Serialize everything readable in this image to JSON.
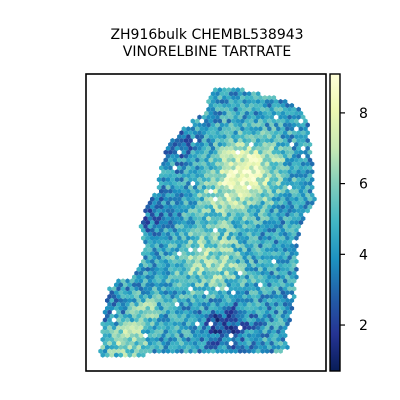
{
  "chart_data": {
    "type": "heatmap",
    "subtype": "hexbin spatial map",
    "title_lines": [
      "ZH916bulk CHEMBL538943",
      "VINORELBINE TARTRATE"
    ],
    "xlabel": "",
    "ylabel": "",
    "axis_ticks_visible": false,
    "grid": false,
    "colormap": "YlGnBu_r",
    "colorbar": {
      "position": "right",
      "range": [
        0.7,
        9.1
      ],
      "ticks": [
        2,
        4,
        6,
        8
      ],
      "tick_labels": [
        "2",
        "4",
        "6",
        "8"
      ],
      "colors": [
        "#081d58",
        "#253494",
        "#225ea8",
        "#1d91c0",
        "#41b6c4",
        "#7fcdbb",
        "#c7e9b4",
        "#edf8b1",
        "#ffffd9"
      ]
    },
    "regions_of_high_value": [
      "upper-right lobe center",
      "middle-center",
      "lower-left edge"
    ],
    "regions_of_low_value": [
      "lower-center",
      "left edge",
      "upper-left edge"
    ]
  }
}
